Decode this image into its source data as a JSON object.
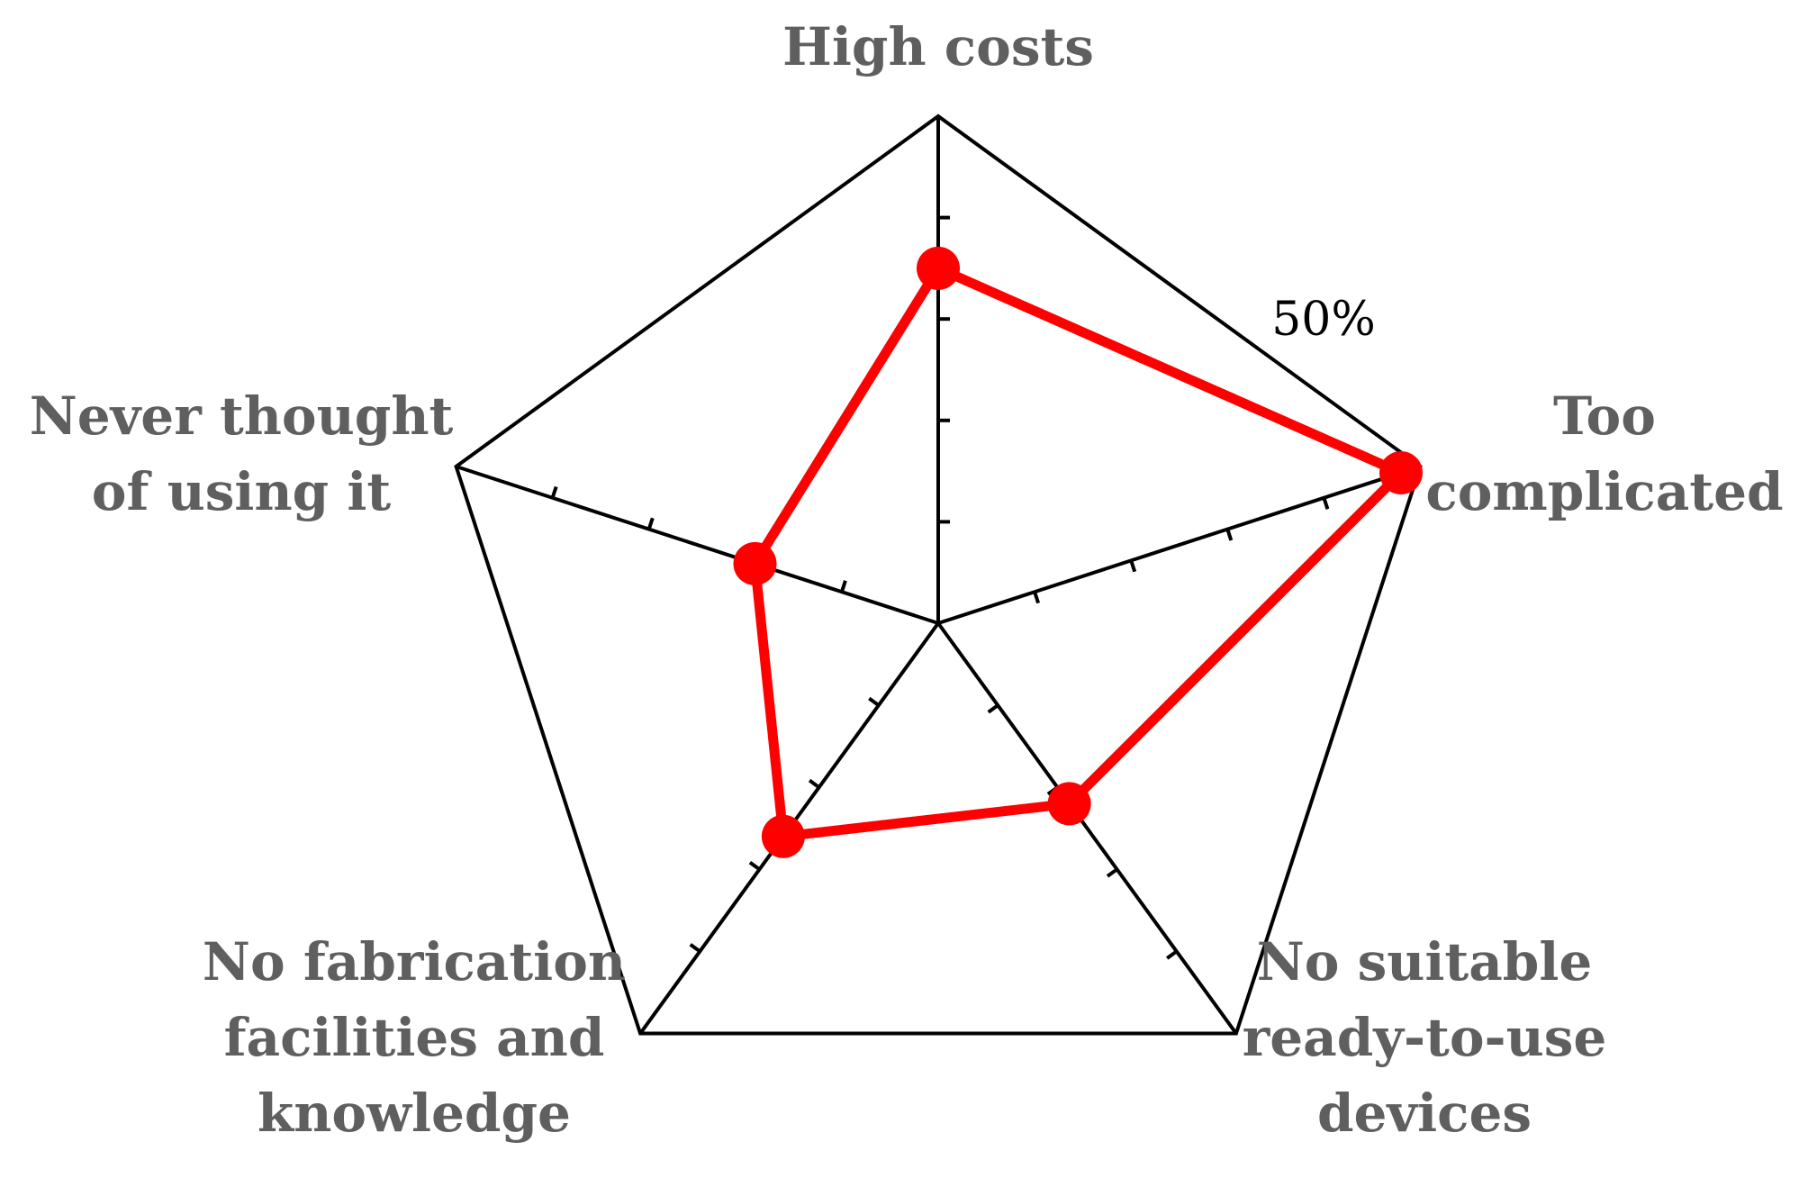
{
  "chart_data": {
    "type": "radar",
    "categories": [
      [
        "High costs"
      ],
      [
        "Too",
        "complicated"
      ],
      [
        "No suitable",
        "ready-to-use",
        "devices"
      ],
      [
        "No fabrication",
        "facilities and",
        "knowledge"
      ],
      [
        "Never thought",
        "of using it"
      ]
    ],
    "series": [
      {
        "values": [
          35,
          48,
          22,
          26,
          19
        ]
      }
    ],
    "r_max": 50,
    "tick_step": 10,
    "max_label": "50%",
    "colors": {
      "series": "#ff0000",
      "grid": "#000000",
      "labels": "#5f5f5f"
    }
  }
}
